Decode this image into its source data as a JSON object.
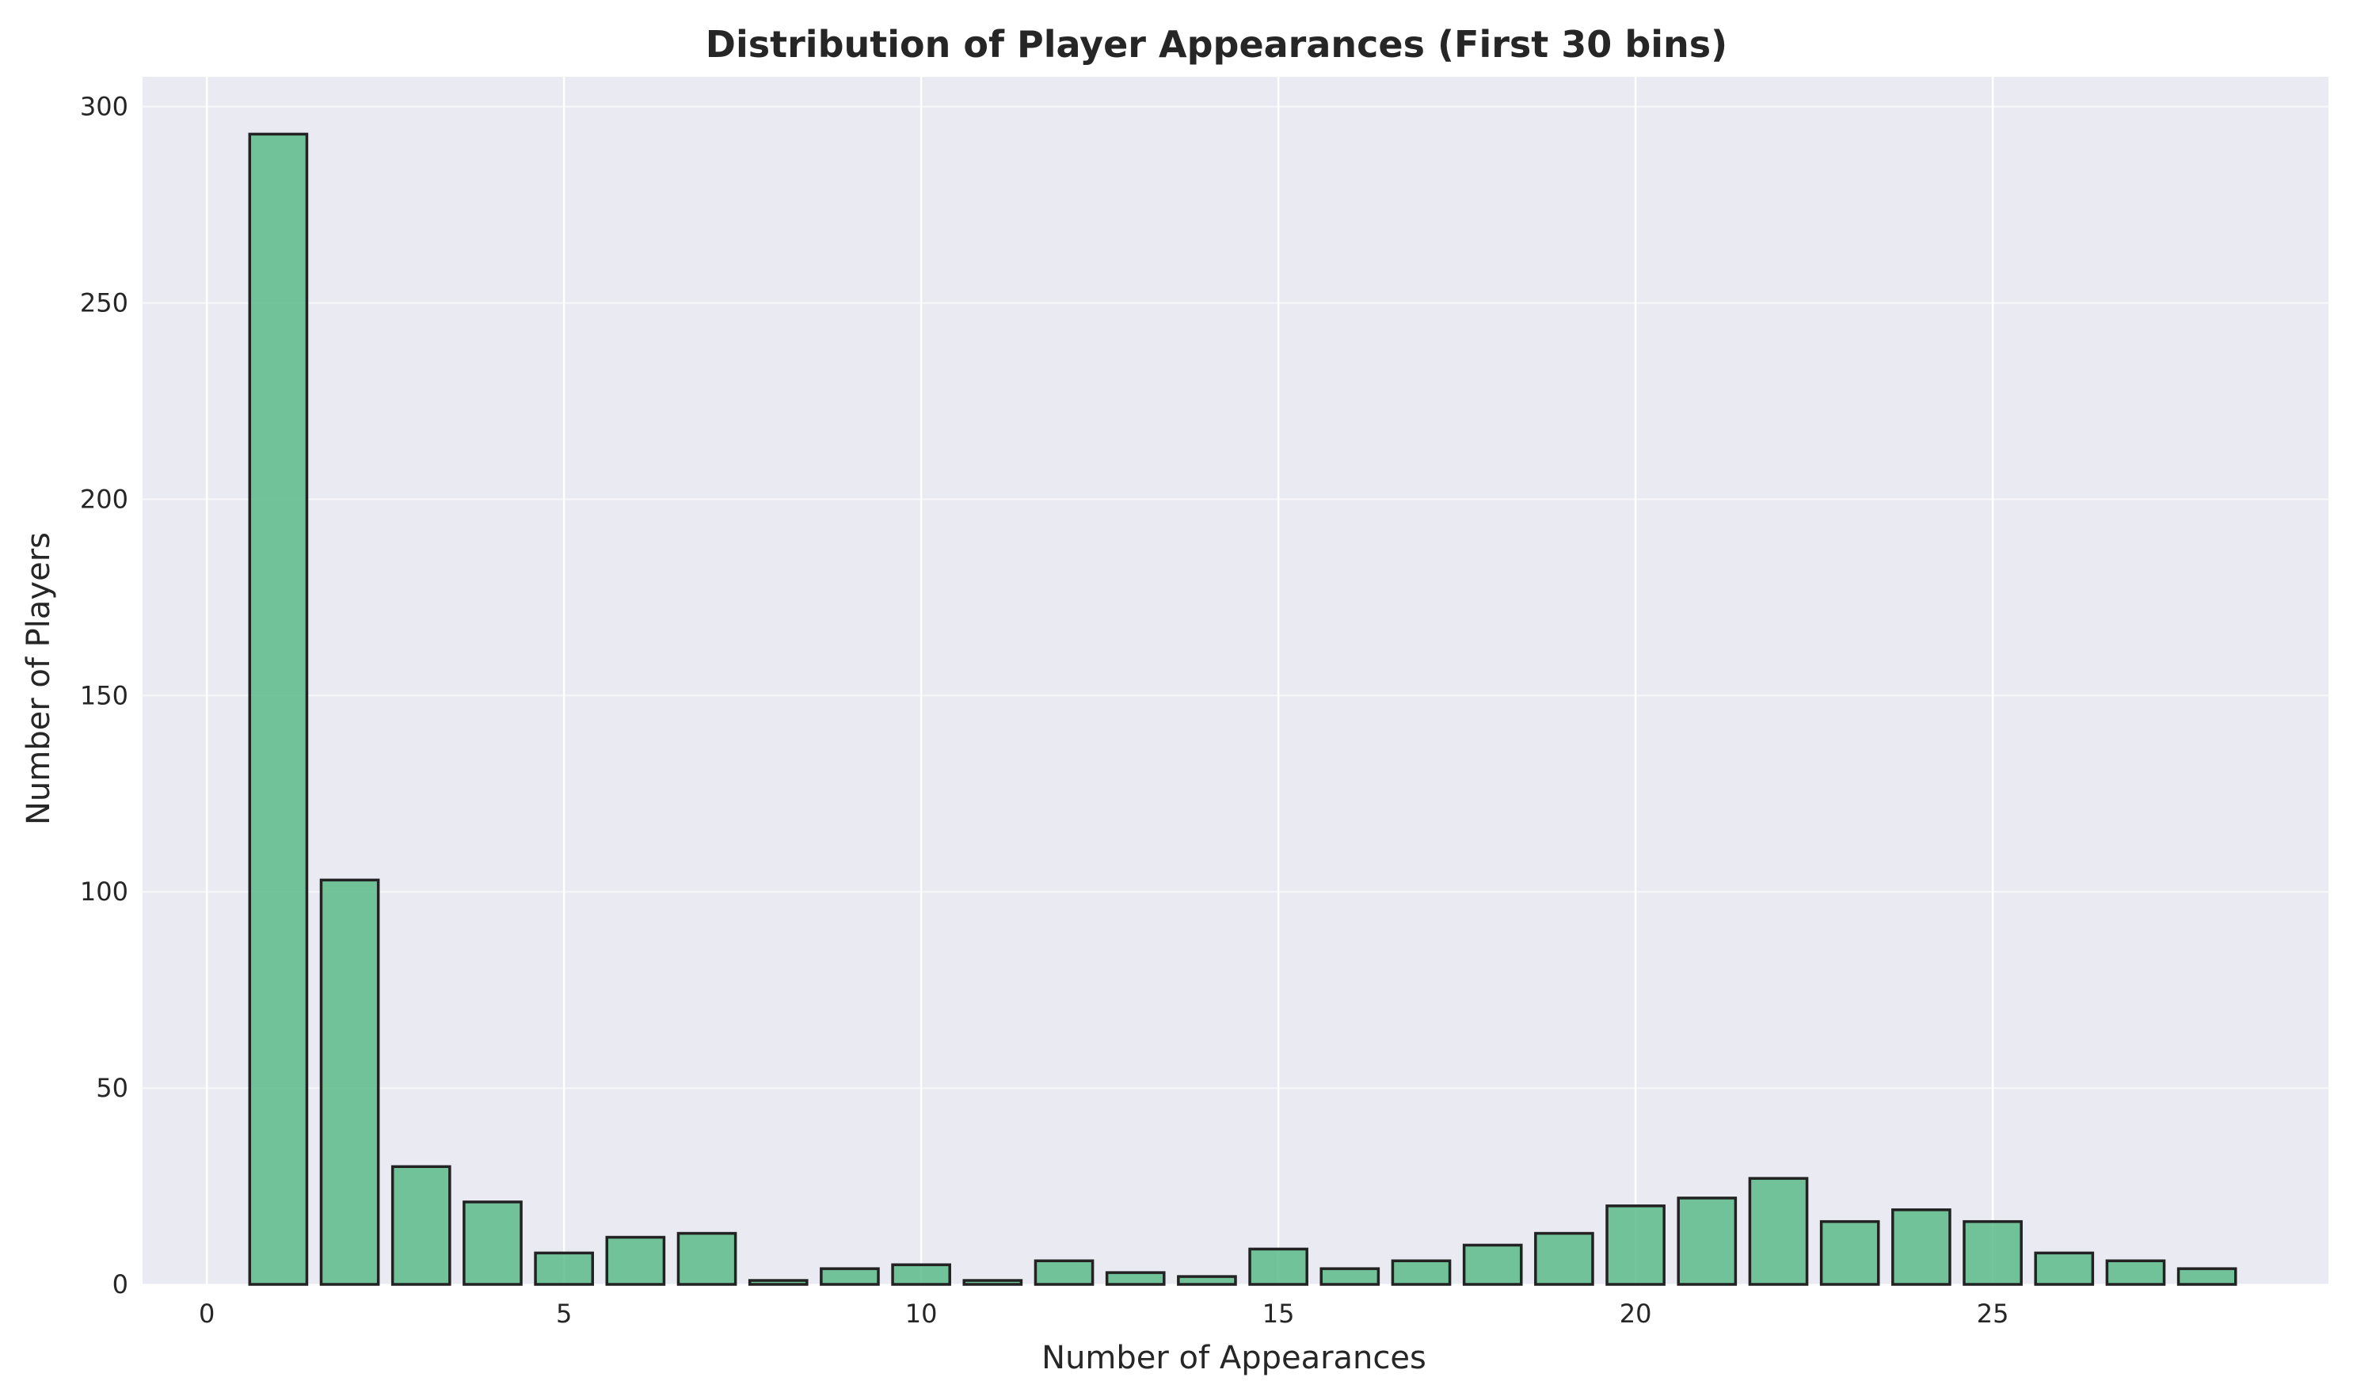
{
  "chart_data": {
    "type": "bar",
    "title": "Distribution of Player Appearances (First 30 bins)",
    "xlabel": "Number of Appearances",
    "ylabel": "Number of Players",
    "x": [
      1,
      2,
      3,
      4,
      5,
      6,
      7,
      8,
      9,
      10,
      11,
      12,
      13,
      14,
      15,
      16,
      17,
      18,
      19,
      20,
      21,
      22,
      23,
      24,
      25,
      26,
      27,
      28
    ],
    "values": [
      293,
      103,
      30,
      21,
      8,
      12,
      13,
      1,
      4,
      5,
      1,
      6,
      3,
      2,
      9,
      4,
      6,
      10,
      13,
      20,
      22,
      27,
      16,
      19,
      16,
      8,
      6,
      4
    ],
    "bar_width": 0.8,
    "xlim": [
      -0.9,
      29.7
    ],
    "ylim": [
      0,
      307.6
    ],
    "xticks": [
      0,
      5,
      10,
      15,
      20,
      25
    ],
    "yticks": [
      0,
      50,
      100,
      150,
      200,
      250,
      300
    ],
    "grid": true,
    "colors": {
      "bar_fill": "#5dbb89",
      "bar_edge": "#222222",
      "plot_background": "#eaeaf2",
      "grid": "#ffffff"
    }
  }
}
